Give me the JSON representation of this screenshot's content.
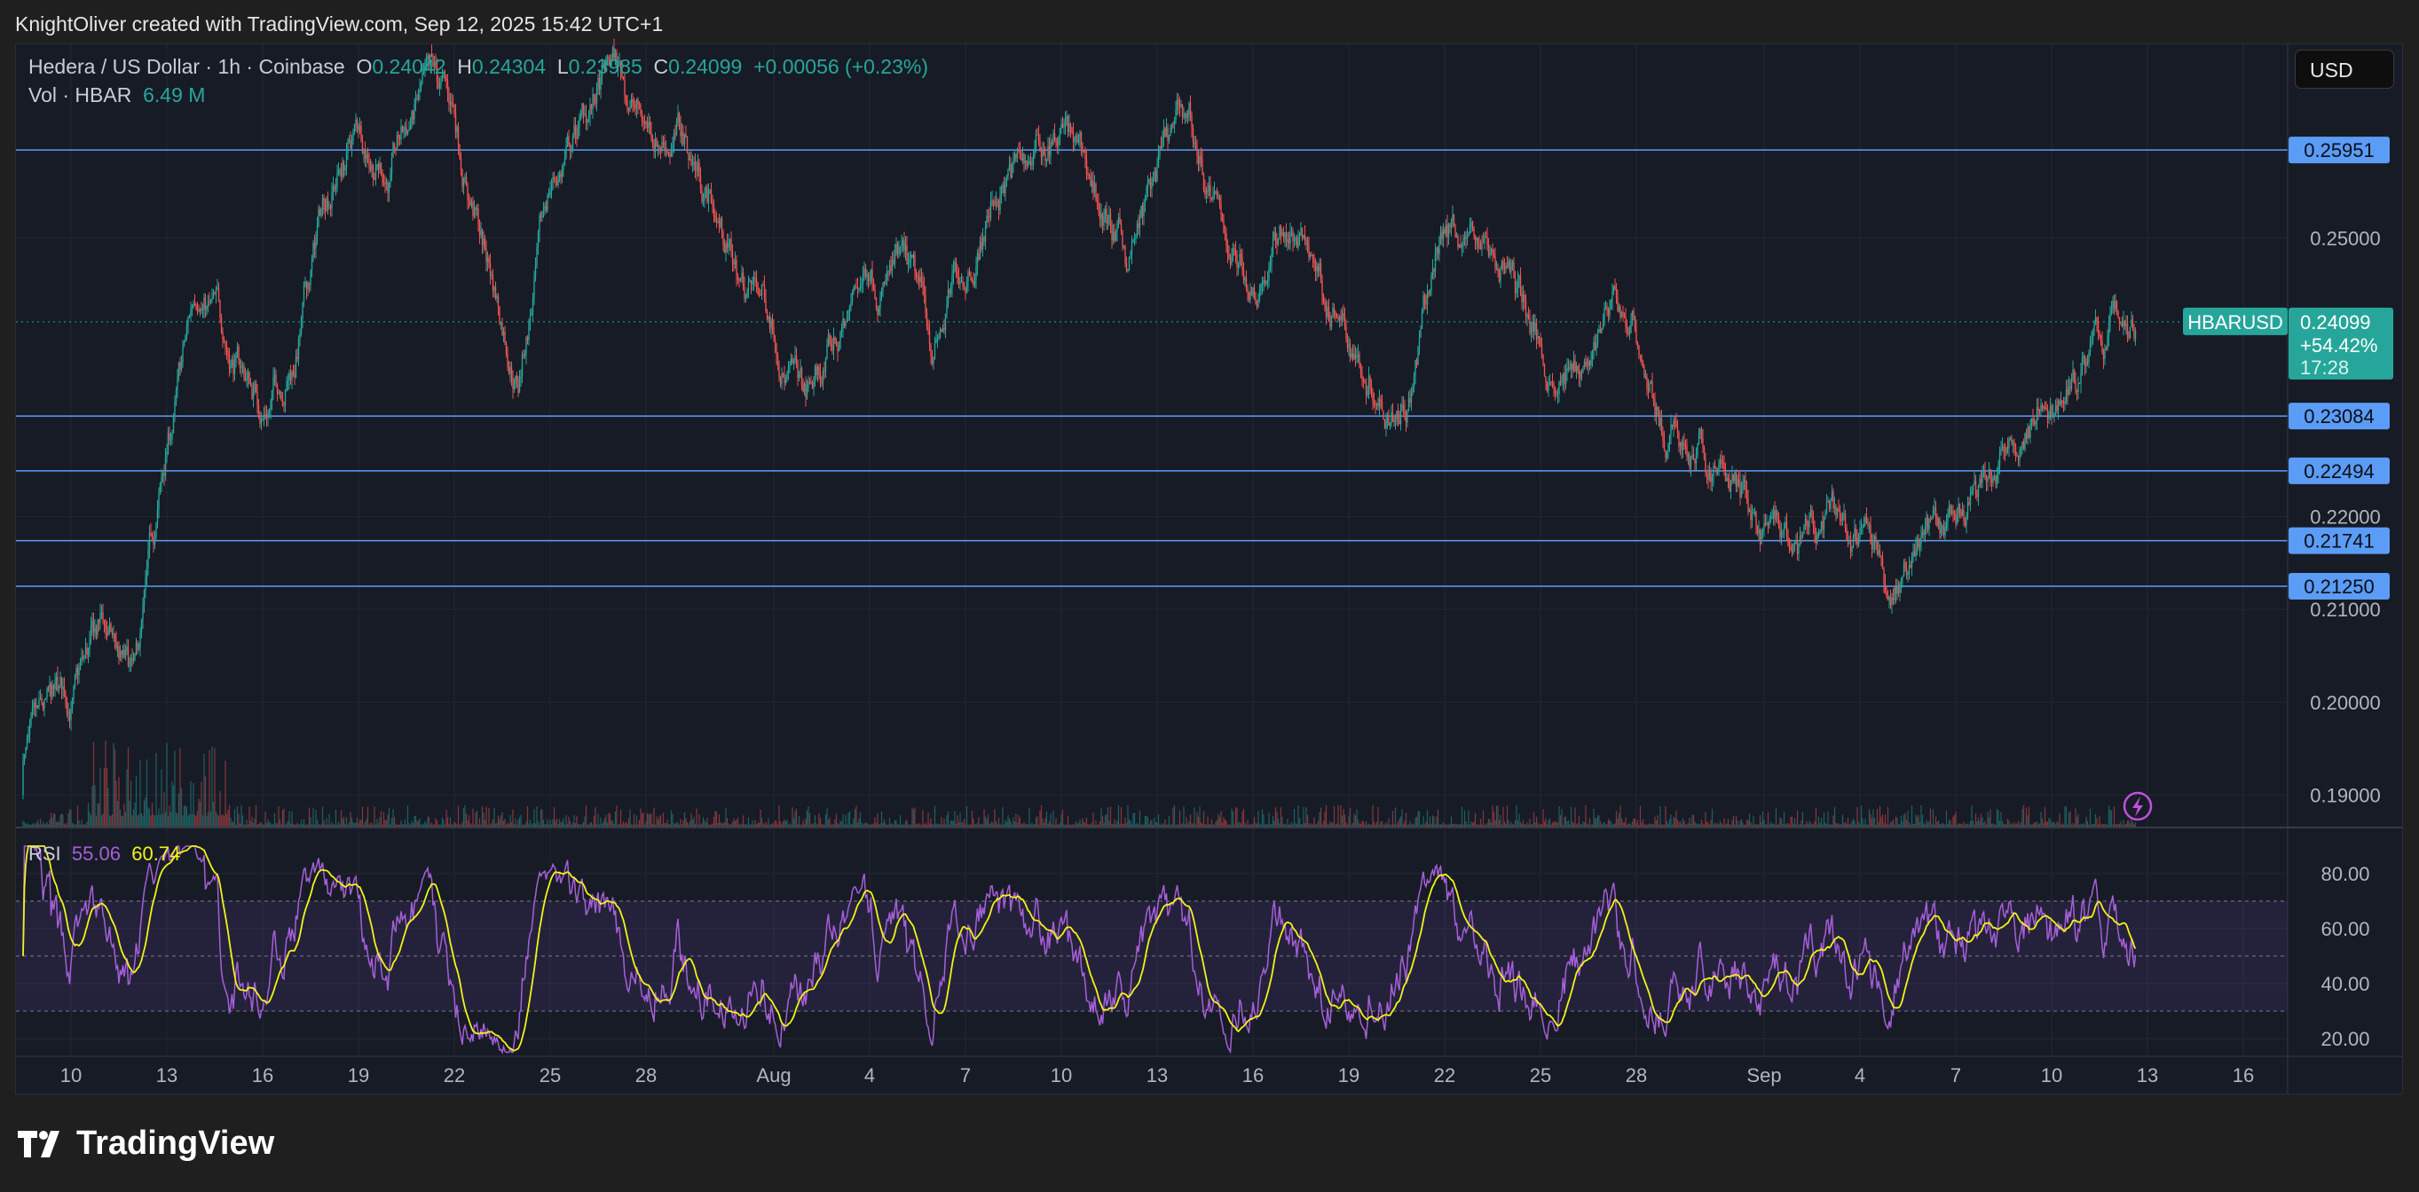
{
  "credit": "KnightOliver created with TradingView.com, Sep 12, 2025 15:42 UTC+1",
  "legend": {
    "symbol": "Hedera / US Dollar · 1h · Coinbase",
    "o_label": "O",
    "o": "0.24042",
    "h_label": "H",
    "h": "0.24304",
    "l_label": "L",
    "l": "0.23985",
    "c_label": "C",
    "c": "0.24099",
    "change": "+0.00056 (+0.23%)",
    "vol_label": "Vol · HBAR",
    "vol": "6.49 M"
  },
  "currency_button": "USD",
  "logo_text": "TradingView",
  "colors": {
    "up": "#26a69a",
    "down": "#ef5350",
    "level": "#5b9cf6",
    "rsi": "#a55fd8",
    "rsi_ma": "#f2f21a",
    "bg": "#171b26"
  },
  "chart_data": [
    {
      "type": "candlestick",
      "interval": "1h",
      "symbol_tag": "HBARUSD",
      "last_price": "0.24099",
      "last_change": "+54.42%",
      "countdown": "17:28",
      "ylim": [
        0.1865,
        0.2709
      ],
      "y_ticks": [
        "0.25000",
        "0.22000",
        "0.21000",
        "0.20000",
        "0.19000"
      ],
      "x_ticks": [
        "10",
        "13",
        "16",
        "19",
        "22",
        "25",
        "28",
        "Aug",
        "4",
        "7",
        "10",
        "13",
        "16",
        "19",
        "22",
        "25",
        "28",
        "Sep",
        "4",
        "7",
        "10",
        "13",
        "16"
      ],
      "x_tick_dates": [
        "2025-07-10",
        "2025-07-13",
        "2025-07-16",
        "2025-07-19",
        "2025-07-22",
        "2025-07-25",
        "2025-07-28",
        "2025-08-01",
        "2025-08-04",
        "2025-08-07",
        "2025-08-10",
        "2025-08-13",
        "2025-08-16",
        "2025-08-19",
        "2025-08-22",
        "2025-08-25",
        "2025-08-28",
        "2025-09-01",
        "2025-09-04",
        "2025-09-07",
        "2025-09-10",
        "2025-09-13",
        "2025-09-16"
      ],
      "horizontal_levels": [
        "0.25951",
        "0.23084",
        "0.22494",
        "0.21741",
        "0.21250"
      ],
      "daily_close_approx": {
        "start_date": "2025-07-09",
        "values": [
          0.195,
          0.199,
          0.207,
          0.2,
          0.225,
          0.245,
          0.238,
          0.232,
          0.238,
          0.255,
          0.262,
          0.258,
          0.265,
          0.262,
          0.248,
          0.236,
          0.255,
          0.262,
          0.268,
          0.262,
          0.262,
          0.255,
          0.245,
          0.242,
          0.232,
          0.238,
          0.248,
          0.246,
          0.237,
          0.247,
          0.256,
          0.258,
          0.262,
          0.255,
          0.247,
          0.256,
          0.262,
          0.25,
          0.246,
          0.252,
          0.247,
          0.238,
          0.235,
          0.236,
          0.252,
          0.25,
          0.247,
          0.238,
          0.235,
          0.242,
          0.24,
          0.228,
          0.226,
          0.224,
          0.218,
          0.214,
          0.218,
          0.216,
          0.213,
          0.219,
          0.216,
          0.222,
          0.228,
          0.232,
          0.236,
          0.241
        ]
      }
    },
    {
      "type": "line",
      "title": "RSI",
      "rsi_value": "55.06",
      "rsi_ma_value": "60.74",
      "ylim": [
        15,
        90
      ],
      "y_ticks": [
        "80.00",
        "60.00",
        "40.00",
        "20.00"
      ],
      "bands": [
        30,
        70
      ]
    }
  ]
}
